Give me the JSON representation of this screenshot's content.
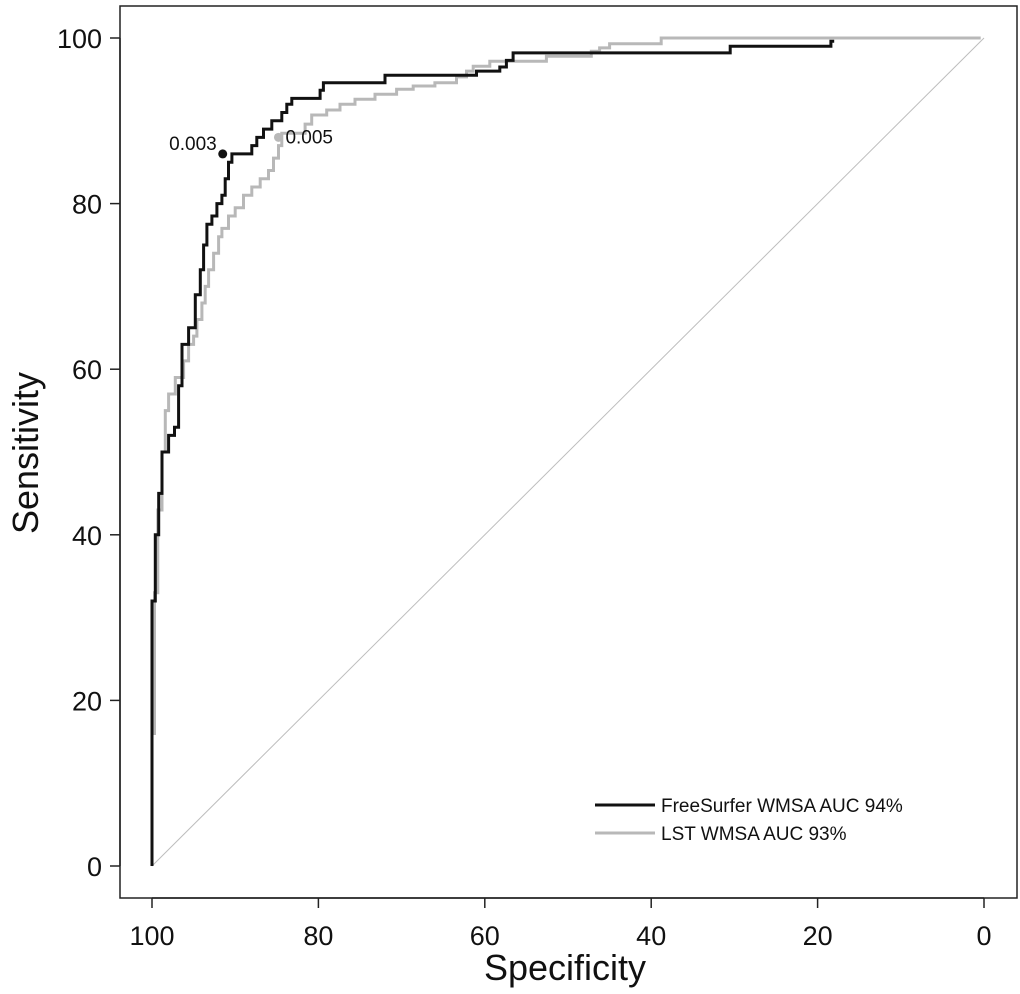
{
  "chart_data": {
    "type": "line",
    "xlabel": "Specificity",
    "ylabel": "Sensitivity",
    "xlim": [
      100,
      0
    ],
    "ylim": [
      0,
      100
    ],
    "x_reversed": true,
    "x_ticks": [
      100,
      80,
      60,
      40,
      20,
      0
    ],
    "y_ticks": [
      0,
      20,
      40,
      60,
      80,
      100
    ],
    "grid": false,
    "legend_position": "bottom-right",
    "reference_line": {
      "from": [
        100,
        0
      ],
      "to": [
        0,
        100
      ],
      "color": "#bdbdbd"
    },
    "series": [
      {
        "name": "FreeSurfer WMSA AUC 94%",
        "color": "#111111",
        "step": true,
        "points": [
          [
            100,
            0
          ],
          [
            100,
            32
          ],
          [
            99.6,
            32
          ],
          [
            99.6,
            40
          ],
          [
            99.2,
            40
          ],
          [
            99.2,
            45
          ],
          [
            98.8,
            45
          ],
          [
            98.8,
            50
          ],
          [
            98,
            50
          ],
          [
            98,
            52
          ],
          [
            97.3,
            52
          ],
          [
            97.3,
            53
          ],
          [
            96.8,
            53
          ],
          [
            96.8,
            58
          ],
          [
            96.4,
            58
          ],
          [
            96.4,
            63
          ],
          [
            95.6,
            63
          ],
          [
            95.6,
            65
          ],
          [
            94.8,
            65
          ],
          [
            94.8,
            69
          ],
          [
            94.2,
            69
          ],
          [
            94.2,
            72
          ],
          [
            93.8,
            72
          ],
          [
            93.8,
            75
          ],
          [
            93.4,
            75
          ],
          [
            93.4,
            77.5
          ],
          [
            92.8,
            77.5
          ],
          [
            92.8,
            78.5
          ],
          [
            92.2,
            78.5
          ],
          [
            92.2,
            80
          ],
          [
            91.6,
            80
          ],
          [
            91.6,
            81
          ],
          [
            91.2,
            81
          ],
          [
            91.2,
            83
          ],
          [
            90.8,
            83
          ],
          [
            90.8,
            85
          ],
          [
            90.4,
            85
          ],
          [
            90.4,
            86
          ],
          [
            88,
            86
          ],
          [
            88,
            87
          ],
          [
            87.4,
            87
          ],
          [
            87.4,
            88
          ],
          [
            86.6,
            88
          ],
          [
            86.6,
            89
          ],
          [
            85.6,
            89
          ],
          [
            85.6,
            90
          ],
          [
            84.4,
            90
          ],
          [
            84.4,
            91
          ],
          [
            83.8,
            91
          ],
          [
            83.8,
            92
          ],
          [
            83.2,
            92
          ],
          [
            83.2,
            92.7
          ],
          [
            79.8,
            92.7
          ],
          [
            79.8,
            93.7
          ],
          [
            79.4,
            93.7
          ],
          [
            79.4,
            94.6
          ],
          [
            72,
            94.6
          ],
          [
            72,
            95.5
          ],
          [
            61,
            95.5
          ],
          [
            61,
            96
          ],
          [
            58.2,
            96
          ],
          [
            58.2,
            96.5
          ],
          [
            57.4,
            96.5
          ],
          [
            57.4,
            97.3
          ],
          [
            56.6,
            97.3
          ],
          [
            56.6,
            98.2
          ],
          [
            30.5,
            98.2
          ],
          [
            30.5,
            99
          ],
          [
            18.4,
            99
          ],
          [
            18.4,
            99.6
          ],
          [
            18,
            99.6
          ]
        ],
        "annotation": {
          "label": "0.003",
          "x": 91.5,
          "y": 86
        }
      },
      {
        "name": "LST WMSA AUC 93%",
        "color": "#b8b8b8",
        "step": true,
        "points": [
          [
            100,
            0
          ],
          [
            100,
            16
          ],
          [
            99.7,
            16
          ],
          [
            99.7,
            33
          ],
          [
            99.3,
            33
          ],
          [
            99.3,
            43
          ],
          [
            98.8,
            43
          ],
          [
            98.8,
            50
          ],
          [
            98.4,
            50
          ],
          [
            98.4,
            55
          ],
          [
            98,
            55
          ],
          [
            98,
            57
          ],
          [
            97.2,
            57
          ],
          [
            97.2,
            59
          ],
          [
            96.2,
            59
          ],
          [
            96.2,
            61
          ],
          [
            95.6,
            61
          ],
          [
            95.6,
            63
          ],
          [
            95,
            63
          ],
          [
            95,
            64
          ],
          [
            94.6,
            64
          ],
          [
            94.6,
            66
          ],
          [
            94,
            66
          ],
          [
            94,
            68
          ],
          [
            93.6,
            68
          ],
          [
            93.6,
            70
          ],
          [
            93.2,
            70
          ],
          [
            93.2,
            72
          ],
          [
            92.6,
            72
          ],
          [
            92.6,
            74
          ],
          [
            92,
            74
          ],
          [
            92,
            76
          ],
          [
            91.6,
            76
          ],
          [
            91.6,
            77
          ],
          [
            90.8,
            77
          ],
          [
            90.8,
            78.5
          ],
          [
            90,
            78.5
          ],
          [
            90,
            79.5
          ],
          [
            89,
            79.5
          ],
          [
            89,
            81
          ],
          [
            88,
            81
          ],
          [
            88,
            82
          ],
          [
            87,
            82
          ],
          [
            87,
            83
          ],
          [
            86,
            83
          ],
          [
            86,
            84
          ],
          [
            85.4,
            84
          ],
          [
            85.4,
            85.5
          ],
          [
            84.8,
            85.5
          ],
          [
            84.8,
            87
          ],
          [
            84.4,
            87
          ],
          [
            84.4,
            88.5
          ],
          [
            81.6,
            88.5
          ],
          [
            81.6,
            89.6
          ],
          [
            80.8,
            89.6
          ],
          [
            80.8,
            90.7
          ],
          [
            79,
            90.7
          ],
          [
            79,
            91.3
          ],
          [
            77.4,
            91.3
          ],
          [
            77.4,
            92
          ],
          [
            75.6,
            92
          ],
          [
            75.6,
            92.6
          ],
          [
            73.2,
            92.6
          ],
          [
            73.2,
            93.2
          ],
          [
            70.6,
            93.2
          ],
          [
            70.6,
            93.8
          ],
          [
            68.6,
            93.8
          ],
          [
            68.6,
            94.2
          ],
          [
            66,
            94.2
          ],
          [
            66,
            94.6
          ],
          [
            63.4,
            94.6
          ],
          [
            63.4,
            95.3
          ],
          [
            62.2,
            95.3
          ],
          [
            62.2,
            96
          ],
          [
            61.4,
            96
          ],
          [
            61.4,
            96.6
          ],
          [
            59.4,
            96.6
          ],
          [
            59.4,
            97.2
          ],
          [
            52.6,
            97.2
          ],
          [
            52.6,
            97.8
          ],
          [
            47.2,
            97.8
          ],
          [
            47.2,
            98.4
          ],
          [
            46.2,
            98.4
          ],
          [
            46.2,
            98.8
          ],
          [
            45,
            98.8
          ],
          [
            45,
            99.3
          ],
          [
            38.8,
            99.3
          ],
          [
            38.8,
            100
          ],
          [
            0.4,
            100
          ]
        ],
        "annotation": {
          "label": "0.005",
          "x": 84.8,
          "y": 88
        }
      }
    ]
  }
}
